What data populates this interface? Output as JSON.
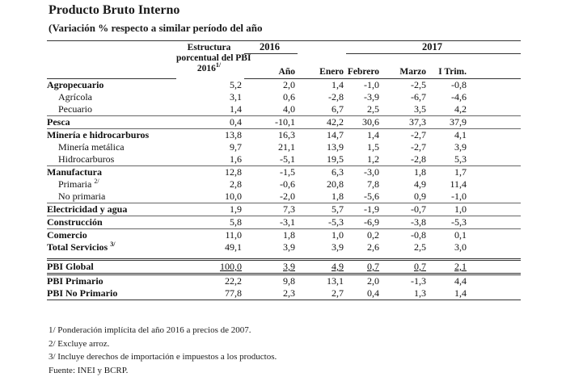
{
  "title": "Producto Bruto Interno",
  "subtitle": "(Variación % respecto a similar período del año",
  "header": {
    "structure_line1": "Estructura",
    "structure_line2": "porcentual del PBI",
    "structure_line3": "2016",
    "structure_note": "1/",
    "year_2016": "2016",
    "year_2017": "2017",
    "col_anio": "Año",
    "col_enero": "Enero",
    "col_febrero": "Febrero",
    "col_marzo": "Marzo",
    "col_itrim": "I Trim."
  },
  "rows": [
    {
      "label": "Agropecuario",
      "note": "",
      "values": [
        "5,2",
        "2,0",
        "1,4",
        "-1,0",
        "-2,5",
        "-0,8"
      ]
    },
    {
      "label": "Agrícola",
      "note": "",
      "values": [
        "3,1",
        "0,6",
        "-2,8",
        "-3,9",
        "-6,7",
        "-4,6"
      ]
    },
    {
      "label": "Pecuario",
      "note": "",
      "values": [
        "1,4",
        "4,0",
        "6,7",
        "2,5",
        "3,5",
        "4,2"
      ]
    },
    {
      "label": "Pesca",
      "note": "",
      "values": [
        "0,4",
        "-10,1",
        "42,2",
        "30,6",
        "37,3",
        "37,9"
      ]
    },
    {
      "label": "Minería e hidrocarburos",
      "note": "",
      "values": [
        "13,8",
        "16,3",
        "14,7",
        "1,4",
        "-2,7",
        "4,1"
      ]
    },
    {
      "label": "Minería metálica",
      "note": "",
      "values": [
        "9,7",
        "21,1",
        "13,9",
        "1,5",
        "-2,7",
        "3,9"
      ]
    },
    {
      "label": "Hidrocarburos",
      "note": "",
      "values": [
        "1,6",
        "-5,1",
        "19,5",
        "1,2",
        "-2,8",
        "5,3"
      ]
    },
    {
      "label": "Manufactura",
      "note": "",
      "values": [
        "12,8",
        "-1,5",
        "6,3",
        "-3,0",
        "1,8",
        "1,7"
      ]
    },
    {
      "label": "Primaria",
      "note": "2/",
      "values": [
        "2,8",
        "-0,6",
        "20,8",
        "7,8",
        "4,9",
        "11,4"
      ]
    },
    {
      "label": "No primaria",
      "note": "",
      "values": [
        "10,0",
        "-2,0",
        "1,8",
        "-5,6",
        "0,9",
        "-1,0"
      ]
    },
    {
      "label": "Electricidad y agua",
      "note": "",
      "values": [
        "1,9",
        "7,3",
        "5,7",
        "-1,9",
        "-0,7",
        "1,0"
      ]
    },
    {
      "label": "Construcción",
      "note": "",
      "values": [
        "5,8",
        "-3,1",
        "-5,3",
        "-6,9",
        "-3,8",
        "-5,3"
      ]
    },
    {
      "label": "Comercio",
      "note": "",
      "values": [
        "11,0",
        "1,8",
        "1,0",
        "0,2",
        "-0,8",
        "0,1"
      ]
    },
    {
      "label": "Total Servicios",
      "note": "3/",
      "values": [
        "49,1",
        "3,9",
        "3,9",
        "2,6",
        "2,5",
        "3,0"
      ]
    },
    {
      "label": "PBI Global",
      "note": "",
      "values": [
        "100,0",
        "3,9",
        "4,9",
        "0,7",
        "0,7",
        "2,1"
      ]
    },
    {
      "label": "PBI Primario",
      "note": "",
      "values": [
        "22,2",
        "9,8",
        "13,1",
        "2,0",
        "-1,3",
        "4,4"
      ]
    },
    {
      "label": "PBI No Primario",
      "note": "",
      "values": [
        "77,8",
        "2,3",
        "2,7",
        "0,4",
        "1,3",
        "1,4"
      ]
    }
  ],
  "footnotes": [
    "1/ Ponderación implícita del año 2016 a precios de 2007.",
    "2/ Excluye arroz.",
    "3/ Incluye derechos de importación e impuestos a los productos.",
    "Fuente: INEI y BCRP."
  ]
}
